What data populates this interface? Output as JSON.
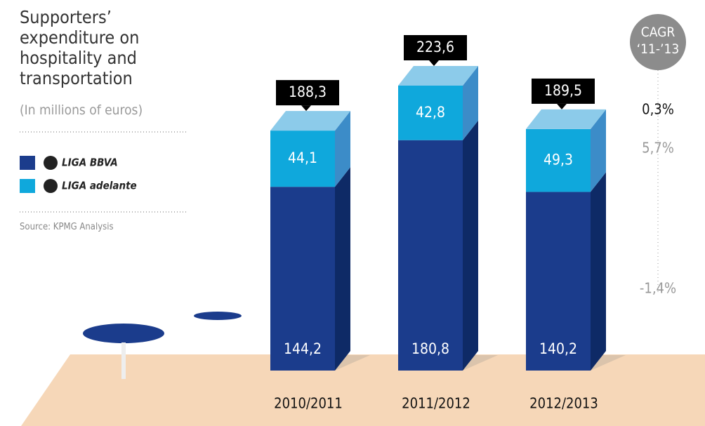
{
  "chart_data": {
    "type": "bar3d_stacked",
    "title": "Supporters’ expenditure on hospitality and transportation",
    "subtitle": "(In millions of euros)",
    "source": "Source: KPMG Analysis",
    "categories": [
      "2010/2011",
      "2011/2012",
      "2012/2013"
    ],
    "series": [
      {
        "name": "LIGA BBVA",
        "color": "#1b3c8c",
        "values": [
          144.2,
          180.8,
          140.2
        ],
        "value_labels": [
          "144,2",
          "180,8",
          "140,2"
        ]
      },
      {
        "name": "LIGA adelante",
        "color": "#0fa8dc",
        "values": [
          44.1,
          42.8,
          49.3
        ],
        "value_labels": [
          "44,1",
          "42,8",
          "49,3"
        ]
      }
    ],
    "totals": [
      188.3,
      223.6,
      189.5
    ],
    "total_labels": [
      "188,3",
      "223,6",
      "189,5"
    ],
    "cagr": {
      "title": "CAGR ‘11-’13",
      "values": [
        0.3,
        5.7,
        -1.4
      ],
      "value_labels": [
        "0,3%",
        "5,7%",
        "-1,4%"
      ]
    }
  }
}
